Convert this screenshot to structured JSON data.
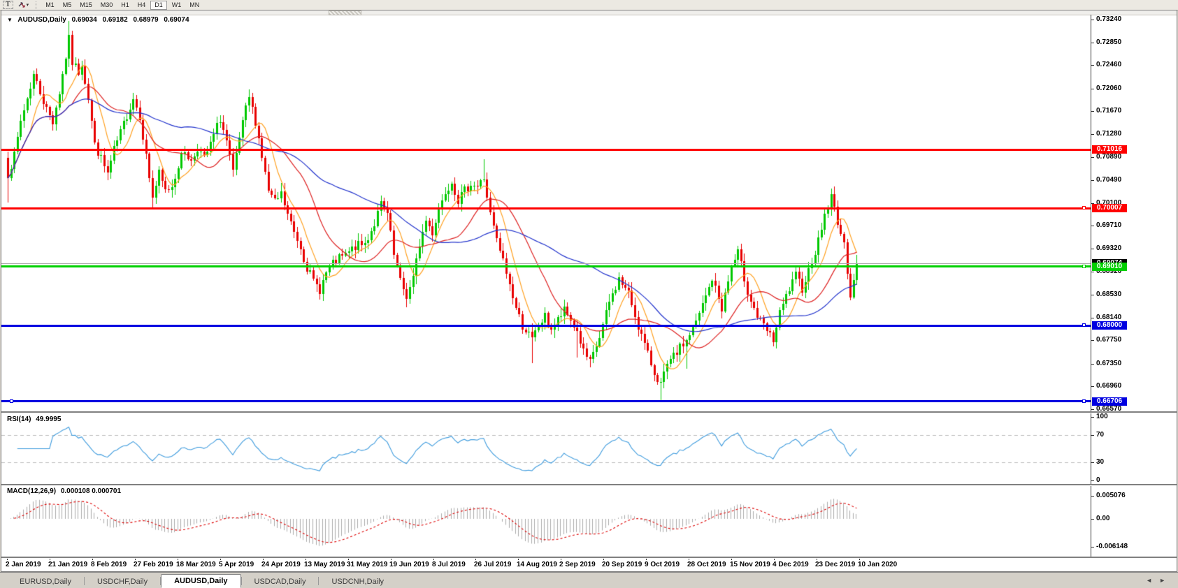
{
  "toolbar": {
    "text_tool_label": "T",
    "caret": "▾",
    "timeframes": [
      "M1",
      "M5",
      "M15",
      "M30",
      "H1",
      "H4",
      "D1",
      "W1",
      "MN"
    ],
    "active_timeframe": "D1"
  },
  "header": {
    "collapse_glyph": "▼",
    "symbol": "AUDUSD,Daily",
    "open": "0.69034",
    "high": "0.69182",
    "low": "0.68979",
    "close": "0.69074"
  },
  "price_axis": {
    "ticks": [
      "0.73240",
      "0.72850",
      "0.72460",
      "0.72060",
      "0.71670",
      "0.71280",
      "0.70890",
      "0.70490",
      "0.70100",
      "0.69710",
      "0.69320",
      "0.68920",
      "0.68530",
      "0.68140",
      "0.67750",
      "0.67350",
      "0.66960",
      "0.66570"
    ]
  },
  "hlines": [
    {
      "value": 0.71016,
      "label": "0.71016",
      "color": "#FF0000",
      "thickness": 3,
      "handles": "none"
    },
    {
      "value": 0.70007,
      "label": "0.70007",
      "color": "#FF0000",
      "thickness": 3,
      "handles": "right"
    },
    {
      "value": 0.6901,
      "label": "0.69010",
      "color": "#00D000",
      "thickness": 3,
      "handles": "right"
    },
    {
      "value": 0.68,
      "label": "0.68000",
      "color": "#0000E0",
      "thickness": 3,
      "handles": "right"
    },
    {
      "value": 0.66706,
      "label": "0.66706",
      "color": "#0000E0",
      "thickness": 3,
      "handles": "both"
    }
  ],
  "current_price": {
    "value": 0.69074,
    "label": "0.69074",
    "line_color": "#ABABAB",
    "badge_bg": "#000000"
  },
  "indicators": {
    "rsi": {
      "name": "RSI(14)",
      "value": "49.9995",
      "axis_labels": [
        100,
        70,
        30,
        0
      ],
      "dashed_levels": [
        70,
        30
      ],
      "line_color": "#3E9BDD"
    },
    "macd": {
      "name": "MACD(12,26,9)",
      "values": "0.000108 0.000701",
      "axis_labels": [
        0.005076,
        0.0,
        -0.006148
      ],
      "histogram_color": "#ABABAB",
      "signal_color": "#DD0000"
    }
  },
  "date_axis": {
    "labels": [
      "2 Jan 2019",
      "21 Jan 2019",
      "8 Feb 2019",
      "27 Feb 2019",
      "18 Mar 2019",
      "5 Apr 2019",
      "24 Apr 2019",
      "13 May 2019",
      "31 May 2019",
      "19 Jun 2019",
      "8 Jul 2019",
      "26 Jul 2019",
      "14 Aug 2019",
      "2 Sep 2019",
      "20 Sep 2019",
      "9 Oct 2019",
      "28 Oct 2019",
      "15 Nov 2019",
      "4 Dec 2019",
      "23 Dec 2019",
      "10 Jan 2020"
    ]
  },
  "tabs": {
    "items": [
      "EURUSD,Daily",
      "USDCHF,Daily",
      "AUDUSD,Daily",
      "USDCAD,Daily",
      "USDCNH,Daily"
    ],
    "active": "AUDUSD,Daily",
    "scroll_left": "◄",
    "scroll_right": "►"
  },
  "chart_data": {
    "type": "candlestick",
    "symbol": "AUDUSD",
    "timeframe": "Daily",
    "ohlc_readout": {
      "open": 0.69034,
      "high": 0.69182,
      "low": 0.68979,
      "close": 0.69074
    },
    "price_range": {
      "top": 0.7324,
      "bottom": 0.6657
    },
    "bars": 265,
    "up_color": "#00C800",
    "down_color": "#E80000",
    "horizontal_levels": [
      0.71016,
      0.70007,
      0.6901,
      0.68,
      0.66706
    ],
    "moving_averages": [
      {
        "color": "#FFA020",
        "period": 8
      },
      {
        "color": "#DD2020",
        "period": 21
      },
      {
        "color": "#2233CC",
        "period": 55
      }
    ],
    "rsi_period": 14,
    "macd_params": [
      12,
      26,
      9
    ],
    "price_path": [
      [
        0,
        0.706
      ],
      [
        2,
        0.709
      ],
      [
        4,
        0.715
      ],
      [
        6,
        0.719
      ],
      [
        8,
        0.723
      ],
      [
        10,
        0.72
      ],
      [
        12,
        0.717
      ],
      [
        14,
        0.715
      ],
      [
        16,
        0.72
      ],
      [
        18,
        0.726
      ],
      [
        19,
        0.729
      ],
      [
        20,
        0.725
      ],
      [
        22,
        0.7235
      ],
      [
        23,
        0.725
      ],
      [
        25,
        0.719
      ],
      [
        27,
        0.711
      ],
      [
        29,
        0.7085
      ],
      [
        31,
        0.706
      ],
      [
        33,
        0.71
      ],
      [
        35,
        0.713
      ],
      [
        37,
        0.716
      ],
      [
        39,
        0.719
      ],
      [
        41,
        0.716
      ],
      [
        43,
        0.709
      ],
      [
        45,
        0.702
      ],
      [
        47,
        0.706
      ],
      [
        49,
        0.703
      ],
      [
        51,
        0.704
      ],
      [
        53,
        0.7075
      ],
      [
        55,
        0.71
      ],
      [
        57,
        0.708
      ],
      [
        59,
        0.7105
      ],
      [
        61,
        0.7085
      ],
      [
        63,
        0.711
      ],
      [
        66,
        0.7155
      ],
      [
        68,
        0.7115
      ],
      [
        70,
        0.706
      ],
      [
        72,
        0.712
      ],
      [
        74,
        0.717
      ],
      [
        75,
        0.719
      ],
      [
        77,
        0.715
      ],
      [
        79,
        0.709
      ],
      [
        81,
        0.703
      ],
      [
        83,
        0.701
      ],
      [
        85,
        0.7025
      ],
      [
        87,
        0.699
      ],
      [
        89,
        0.696
      ],
      [
        91,
        0.6935
      ],
      [
        93,
        0.69
      ],
      [
        95,
        0.6875
      ],
      [
        97,
        0.6862
      ],
      [
        99,
        0.689
      ],
      [
        101,
        0.6905
      ],
      [
        103,
        0.6915
      ],
      [
        105,
        0.692
      ],
      [
        108,
        0.6935
      ],
      [
        111,
        0.694
      ],
      [
        114,
        0.6975
      ],
      [
        116,
        0.7008
      ],
      [
        118,
        0.699
      ],
      [
        120,
        0.692
      ],
      [
        122,
        0.6875
      ],
      [
        124,
        0.685
      ],
      [
        126,
        0.688
      ],
      [
        128,
        0.694
      ],
      [
        130,
        0.698
      ],
      [
        132,
        0.696
      ],
      [
        134,
        0.7
      ],
      [
        136,
        0.703
      ],
      [
        138,
        0.7048
      ],
      [
        140,
        0.7015
      ],
      [
        142,
        0.703
      ],
      [
        144,
        0.7045
      ],
      [
        146,
        0.7038
      ],
      [
        148,
        0.7052
      ],
      [
        150,
        0.699
      ],
      [
        152,
        0.6945
      ],
      [
        154,
        0.691
      ],
      [
        156,
        0.687
      ],
      [
        158,
        0.683
      ],
      [
        160,
        0.68
      ],
      [
        162,
        0.6785
      ],
      [
        163,
        0.6775
      ],
      [
        165,
        0.68
      ],
      [
        167,
        0.6815
      ],
      [
        169,
        0.6795
      ],
      [
        171,
        0.681
      ],
      [
        173,
        0.6825
      ],
      [
        175,
        0.681
      ],
      [
        177,
        0.679
      ],
      [
        179,
        0.6755
      ],
      [
        181,
        0.6735
      ],
      [
        184,
        0.678
      ],
      [
        187,
        0.684
      ],
      [
        190,
        0.688
      ],
      [
        193,
        0.6855
      ],
      [
        196,
        0.68
      ],
      [
        199,
        0.675
      ],
      [
        201,
        0.672
      ],
      [
        203,
        0.67
      ],
      [
        205,
        0.673
      ],
      [
        208,
        0.6755
      ],
      [
        211,
        0.6775
      ],
      [
        214,
        0.6805
      ],
      [
        217,
        0.685
      ],
      [
        219,
        0.688
      ],
      [
        222,
        0.683
      ],
      [
        225,
        0.69
      ],
      [
        227,
        0.6925
      ],
      [
        230,
        0.686
      ],
      [
        233,
        0.6815
      ],
      [
        236,
        0.679
      ],
      [
        238,
        0.6775
      ],
      [
        240,
        0.682
      ],
      [
        242,
        0.685
      ],
      [
        245,
        0.6885
      ],
      [
        247,
        0.6865
      ],
      [
        249,
        0.6895
      ],
      [
        252,
        0.6945
      ],
      [
        254,
        0.699
      ],
      [
        256,
        0.702
      ],
      [
        258,
        0.698
      ],
      [
        260,
        0.6935
      ],
      [
        262,
        0.6855
      ],
      [
        263,
        0.688
      ],
      [
        264,
        0.69074
      ]
    ],
    "spikes": [
      {
        "i": 0,
        "p": 0.701
      },
      {
        "i": 19,
        "p": 0.7322
      },
      {
        "i": 45,
        "p": 0.7
      },
      {
        "i": 75,
        "p": 0.7205
      },
      {
        "i": 97,
        "p": 0.6855
      },
      {
        "i": 116,
        "p": 0.7022
      },
      {
        "i": 124,
        "p": 0.6832
      },
      {
        "i": 148,
        "p": 0.7085
      },
      {
        "i": 163,
        "p": 0.6736
      },
      {
        "i": 177,
        "p": 0.6745
      },
      {
        "i": 203,
        "p": 0.667
      },
      {
        "i": 211,
        "p": 0.6726
      },
      {
        "i": 227,
        "p": 0.6933
      },
      {
        "i": 238,
        "p": 0.6765
      },
      {
        "i": 256,
        "p": 0.7035
      },
      {
        "i": 262,
        "p": 0.685
      }
    ]
  }
}
